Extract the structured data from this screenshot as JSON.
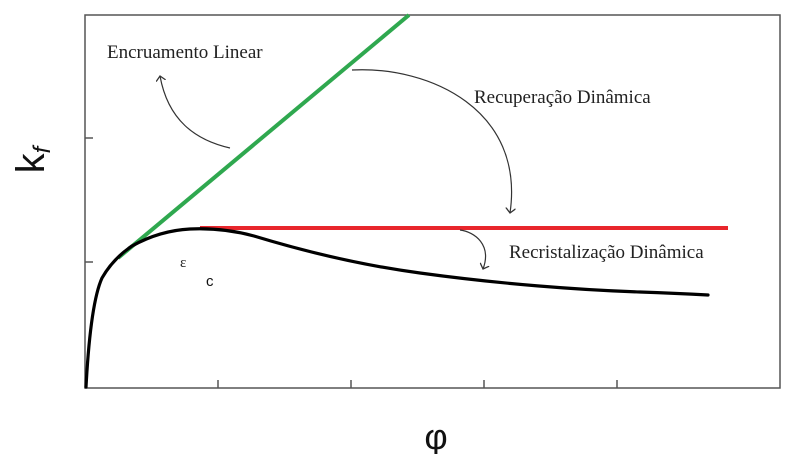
{
  "chart_data": {
    "type": "line",
    "title": "",
    "xlabel": "φ",
    "ylabel": "k",
    "ylabel_subscript": "f",
    "grid": false,
    "x_ticks_labeled": false,
    "y_ticks_labeled": false,
    "annotations": {
      "linear": "Encruamento Linear",
      "recovery": "Recuperação Dinâmica",
      "recrystallization": "Recristalização Dinâmica",
      "critical_strain_symbol": "ε",
      "critical_strain_subscript": "c"
    },
    "colors": {
      "linear_line": "#2fa84f",
      "recovery_line": "#e8262c",
      "curve": "#000000",
      "axes": "#555555",
      "arrows": "#333333"
    }
  }
}
